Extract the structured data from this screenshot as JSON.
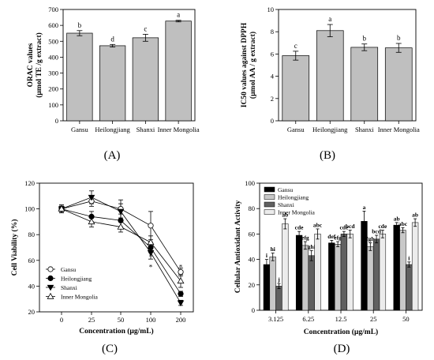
{
  "chart_data": [
    {
      "type": "bar",
      "panel_label": "(A)",
      "ylabel_lines": [
        "ORAC values",
        "(µmol TE /g extract)"
      ],
      "xlabel": "",
      "ylim": [
        0,
        700
      ],
      "yticks": [
        0,
        100,
        200,
        300,
        400,
        500,
        600,
        700
      ],
      "categories": [
        "Gansu",
        "Heilongjiang",
        "Shanxi",
        "Inner Mongolia"
      ],
      "values": [
        551,
        472,
        522,
        627
      ],
      "errors": [
        16,
        8,
        22,
        5
      ],
      "letters": [
        "b",
        "d",
        "c",
        "a"
      ],
      "bar_color": "#bfbfbf"
    },
    {
      "type": "bar",
      "panel_label": "(B)",
      "ylabel_lines": [
        "IC50 values against DPPH",
        "(µmol AA / g  extract)"
      ],
      "xlabel": "",
      "ylim": [
        0,
        10
      ],
      "yticks": [
        0,
        2,
        4,
        6,
        8,
        10
      ],
      "categories": [
        "Gansu",
        "Heilongjiang",
        "Shanxi",
        "Inner Mongolia"
      ],
      "values": [
        5.85,
        8.1,
        6.6,
        6.55
      ],
      "errors": [
        0.4,
        0.55,
        0.3,
        0.4
      ],
      "letters": [
        "c",
        "a",
        "b",
        "b"
      ],
      "bar_color": "#bfbfbf"
    },
    {
      "type": "line",
      "panel_label": "(C)",
      "xlabel": "Concentration (µg/mL)",
      "ylabel": "Cell Viability (%)",
      "ylim": [
        20,
        120
      ],
      "yticks": [
        20,
        40,
        60,
        80,
        100,
        120
      ],
      "x": [
        "0",
        "25",
        "50",
        "100",
        "200"
      ],
      "series": [
        {
          "name": "Gansu",
          "marker": "circle-open",
          "values": [
            100,
            106,
            100,
            87,
            51
          ],
          "errors": [
            3,
            4,
            7,
            11,
            3
          ]
        },
        {
          "name": "Heilongjiang",
          "marker": "circle-filled",
          "values": [
            100,
            94,
            91,
            70,
            34
          ],
          "errors": [
            3,
            4,
            5,
            4,
            2
          ]
        },
        {
          "name": "Shanxi",
          "marker": "triangle-down-filled",
          "values": [
            100,
            109,
            98,
            66,
            27
          ],
          "errors": [
            2,
            5,
            6,
            5,
            2
          ]
        },
        {
          "name": "Inner Mongolia",
          "marker": "triangle-up-open",
          "values": [
            100,
            90,
            86,
            74,
            44
          ],
          "errors": [
            3,
            4,
            4,
            5,
            5
          ]
        }
      ],
      "stars": [
        {
          "x_index": 3,
          "y": 64,
          "text": "*"
        },
        {
          "x_index": 3,
          "y": 56,
          "text": "*"
        },
        {
          "x_index": 4,
          "y": 56,
          "text": "*"
        }
      ],
      "legend_placement": "bottom-left"
    },
    {
      "type": "bar",
      "panel_label": "(D)",
      "xlabel": "Concentration (µg/mL)",
      "ylabel": "Cellular Antioxidant Activity",
      "ylim": [
        0,
        100
      ],
      "yticks": [
        0,
        20,
        40,
        60,
        80,
        100
      ],
      "categories": [
        "3.125",
        "6.25",
        "12.5",
        "25",
        "50"
      ],
      "series": [
        {
          "name": "Gansu",
          "color": "#000000",
          "values": [
            36,
            59,
            53,
            70,
            67
          ],
          "errors": [
            4,
            3,
            2,
            8,
            2
          ],
          "letters": [
            "i",
            "cde",
            "def",
            "a",
            "ab"
          ]
        },
        {
          "name": "Heilongjiang",
          "color": "#c8c8c8",
          "values": [
            42,
            51,
            52,
            50,
            63
          ],
          "errors": [
            3,
            3,
            2,
            3,
            2
          ],
          "letters": [
            "hi",
            "efg",
            "efg",
            "fgh",
            "abc"
          ]
        },
        {
          "name": "Shanxi",
          "color": "#606060",
          "values": [
            19,
            43,
            60,
            56,
            36
          ],
          "errors": [
            2,
            4,
            2,
            3,
            2
          ],
          "letters": [
            "j",
            "ghi",
            "cde",
            "bcd",
            "i"
          ]
        },
        {
          "name": "Inner Mongolia",
          "color": "#ececec",
          "values": [
            68,
            60,
            60,
            60,
            69
          ],
          "errors": [
            4,
            4,
            3,
            3,
            3
          ],
          "letters": [
            "ab",
            "abc",
            "bcd",
            "cde",
            "ab"
          ]
        }
      ],
      "legend_placement": "top-left"
    }
  ]
}
